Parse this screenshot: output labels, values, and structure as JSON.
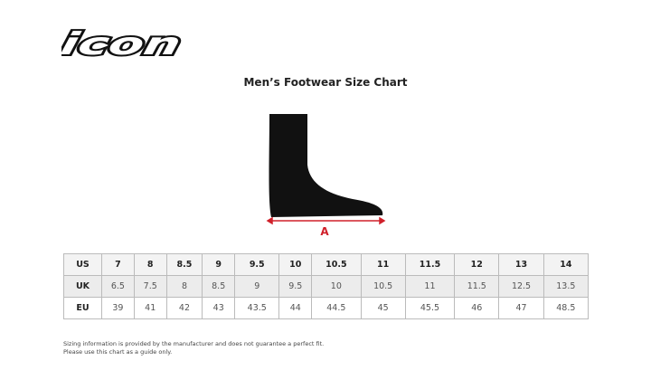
{
  "logo": {
    "text": "icon"
  },
  "title": "Men’s Footwear Size Chart",
  "diagram": {
    "measure_label": "A",
    "arrow_color": "#d0202a"
  },
  "table": {
    "rows": [
      {
        "label": "US",
        "values": [
          "7",
          "8",
          "8.5",
          "9",
          "9.5",
          "10",
          "10.5",
          "11",
          "11.5",
          "12",
          "13",
          "14"
        ]
      },
      {
        "label": "UK",
        "values": [
          "6.5",
          "7.5",
          "8",
          "8.5",
          "9",
          "9.5",
          "10",
          "10.5",
          "11",
          "11.5",
          "12.5",
          "13.5"
        ]
      },
      {
        "label": "EU",
        "values": [
          "39",
          "41",
          "42",
          "43",
          "43.5",
          "44",
          "44.5",
          "45",
          "45.5",
          "46",
          "47",
          "48.5"
        ]
      }
    ]
  },
  "note": {
    "line1": "Sizing information is provided by the manufacturer and does not guarantee a perfect fit.",
    "line2": "Please use this chart as a guide only."
  }
}
